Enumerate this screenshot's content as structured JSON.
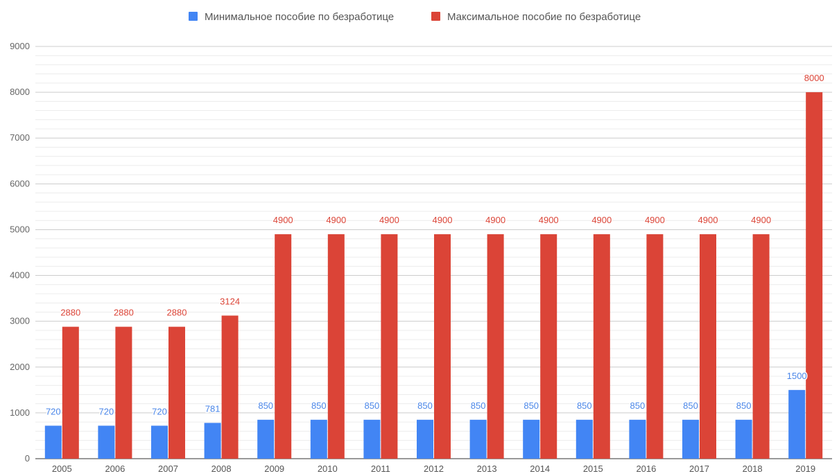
{
  "chart_data": {
    "type": "bar",
    "title": "",
    "xlabel": "",
    "ylabel": "",
    "categories": [
      "2005",
      "2006",
      "2007",
      "2008",
      "2009",
      "2010",
      "2011",
      "2012",
      "2013",
      "2014",
      "2015",
      "2016",
      "2017",
      "2018",
      "2019"
    ],
    "series": [
      {
        "name": "Минимальное пособие по безработице",
        "color": "#4285f4",
        "label_color": "#4a86e8",
        "values": [
          720,
          720,
          720,
          781,
          850,
          850,
          850,
          850,
          850,
          850,
          850,
          850,
          850,
          850,
          1500
        ]
      },
      {
        "name": "Максимальное пособие по безработице",
        "color": "#db4437",
        "label_color": "#db4437",
        "values": [
          2880,
          2880,
          2880,
          3124,
          4900,
          4900,
          4900,
          4900,
          4900,
          4900,
          4900,
          4900,
          4900,
          4900,
          8000
        ]
      }
    ],
    "ylim": [
      0,
      9000
    ],
    "yticks": [
      0,
      1000,
      2000,
      3000,
      4000,
      5000,
      6000,
      7000,
      8000,
      9000
    ],
    "grid": true,
    "minor_grid": true,
    "legend_position": "top-center",
    "data_labels": true
  }
}
